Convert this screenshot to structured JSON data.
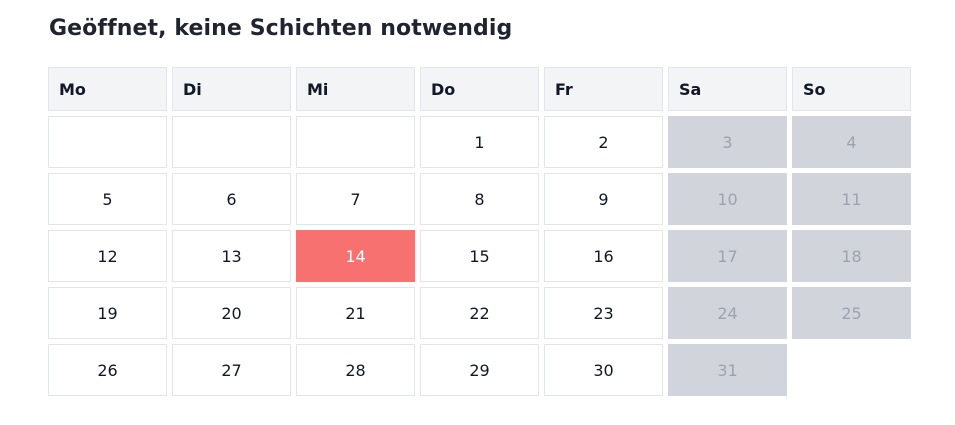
{
  "title": "Geöffnet, keine Schichten notwendig",
  "weekdays": [
    "Mo",
    "Di",
    "Mi",
    "Do",
    "Fr",
    "Sa",
    "So"
  ],
  "highlighted_day": "14",
  "colors": {
    "today": "#f87171",
    "weekend": "#d2d4dc",
    "header": "#f3f4f6"
  },
  "weeks": [
    [
      "",
      "",
      "",
      "1",
      "2",
      "3",
      "4"
    ],
    [
      "5",
      "6",
      "7",
      "8",
      "9",
      "10",
      "11"
    ],
    [
      "12",
      "13",
      "14",
      "15",
      "16",
      "17",
      "18"
    ],
    [
      "19",
      "20",
      "21",
      "22",
      "23",
      "24",
      "25"
    ],
    [
      "26",
      "27",
      "28",
      "29",
      "30",
      "31",
      null
    ]
  ]
}
